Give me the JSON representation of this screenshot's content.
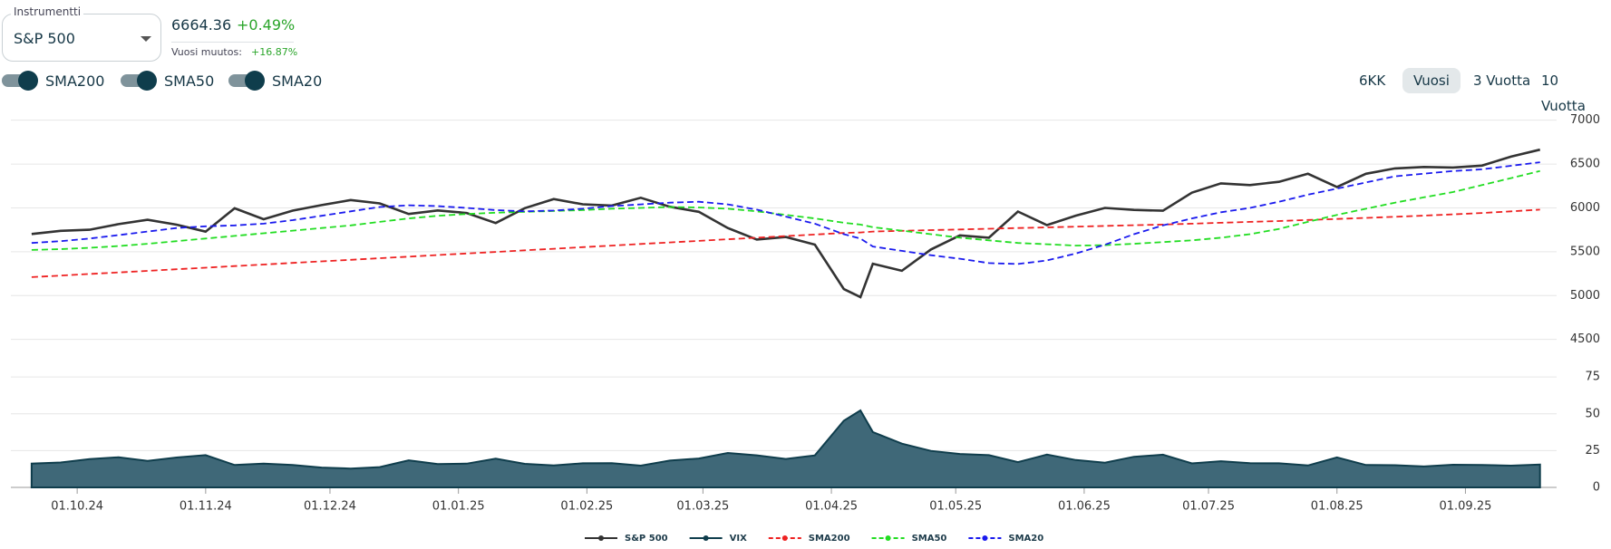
{
  "instrument": {
    "label": "Instrumentti",
    "value": "S&P 500"
  },
  "quote": {
    "price": "6664.36",
    "change": "+0.49%",
    "year_change_label": "Vuosi muutos:",
    "year_change": "+16.87%"
  },
  "toggles": [
    {
      "label": "SMA200",
      "on": true
    },
    {
      "label": "SMA50",
      "on": true
    },
    {
      "label": "SMA20",
      "on": true
    }
  ],
  "ranges": {
    "options": [
      "6KK",
      "Vuosi",
      "3 Vuotta",
      "10 Vuotta"
    ],
    "selected": 1
  },
  "chart_data": [
    {
      "type": "line",
      "x": [
        "2024-09-20",
        "2024-09-27",
        "2024-10-04",
        "2024-10-11",
        "2024-10-18",
        "2024-10-25",
        "2024-11-01",
        "2024-11-08",
        "2024-11-15",
        "2024-11-22",
        "2024-11-29",
        "2024-12-06",
        "2024-12-13",
        "2024-12-20",
        "2024-12-27",
        "2025-01-03",
        "2025-01-10",
        "2025-01-17",
        "2025-01-24",
        "2025-01-31",
        "2025-02-07",
        "2025-02-14",
        "2025-02-21",
        "2025-02-28",
        "2025-03-07",
        "2025-03-14",
        "2025-03-21",
        "2025-03-28",
        "2025-04-04",
        "2025-04-08",
        "2025-04-11",
        "2025-04-18",
        "2025-04-25",
        "2025-05-02",
        "2025-05-09",
        "2025-05-16",
        "2025-05-23",
        "2025-05-30",
        "2025-06-06",
        "2025-06-13",
        "2025-06-20",
        "2025-06-27",
        "2025-07-04",
        "2025-07-11",
        "2025-07-18",
        "2025-07-25",
        "2025-08-01",
        "2025-08-08",
        "2025-08-15",
        "2025-08-22",
        "2025-08-29",
        "2025-09-05",
        "2025-09-12",
        "2025-09-19"
      ],
      "xlim": [
        "2024-09-15",
        "2025-09-23"
      ],
      "ylim": [
        4300,
        7100
      ],
      "yticks": [
        4500,
        5000,
        5500,
        6000,
        6500,
        7000
      ],
      "grid": true,
      "series": [
        {
          "name": "S&P 500",
          "color": "#333333",
          "style": "solid",
          "values": [
            5702,
            5738,
            5751,
            5815,
            5864,
            5808,
            5729,
            5995,
            5870,
            5969,
            6032,
            6090,
            6051,
            5930,
            5971,
            5942,
            5827,
            5997,
            6101,
            6041,
            6026,
            6115,
            6013,
            5955,
            5770,
            5639,
            5668,
            5581,
            5074,
            4983,
            5363,
            5283,
            5525,
            5687,
            5660,
            5958,
            5803,
            5912,
            6000,
            5977,
            5968,
            6173,
            6280,
            6260,
            6297,
            6389,
            6238,
            6389,
            6450,
            6467,
            6460,
            6482,
            6584,
            6664
          ]
        },
        {
          "name": "SMA200",
          "color": "#ee2222",
          "style": "dashed",
          "values": [
            5210,
            5228,
            5246,
            5264,
            5282,
            5300,
            5318,
            5336,
            5354,
            5372,
            5390,
            5408,
            5426,
            5444,
            5462,
            5480,
            5498,
            5516,
            5534,
            5552,
            5570,
            5588,
            5606,
            5624,
            5642,
            5660,
            5678,
            5696,
            5714,
            5720,
            5730,
            5738,
            5746,
            5754,
            5762,
            5770,
            5778,
            5786,
            5794,
            5802,
            5810,
            5820,
            5830,
            5840,
            5850,
            5862,
            5874,
            5886,
            5898,
            5912,
            5926,
            5942,
            5960,
            5980
          ]
        },
        {
          "name": "SMA50",
          "color": "#22dd22",
          "style": "dashed",
          "values": [
            5520,
            5530,
            5545,
            5565,
            5590,
            5620,
            5650,
            5680,
            5710,
            5740,
            5770,
            5800,
            5840,
            5880,
            5910,
            5930,
            5945,
            5955,
            5965,
            5975,
            5990,
            6000,
            6010,
            6005,
            5990,
            5960,
            5920,
            5880,
            5830,
            5810,
            5780,
            5740,
            5700,
            5660,
            5630,
            5600,
            5585,
            5570,
            5575,
            5590,
            5610,
            5630,
            5660,
            5700,
            5760,
            5840,
            5920,
            5990,
            6060,
            6120,
            6180,
            6260,
            6340,
            6420
          ]
        },
        {
          "name": "SMA20",
          "color": "#1a1aee",
          "style": "dashed",
          "values": [
            5600,
            5620,
            5650,
            5690,
            5730,
            5770,
            5790,
            5800,
            5820,
            5860,
            5910,
            5960,
            6010,
            6030,
            6020,
            6000,
            5975,
            5960,
            5970,
            5990,
            6020,
            6040,
            6060,
            6070,
            6040,
            5980,
            5900,
            5820,
            5700,
            5650,
            5560,
            5510,
            5460,
            5420,
            5370,
            5360,
            5400,
            5480,
            5580,
            5700,
            5800,
            5880,
            5950,
            6000,
            6070,
            6150,
            6220,
            6290,
            6360,
            6390,
            6420,
            6440,
            6480,
            6520
          ]
        }
      ]
    },
    {
      "type": "area",
      "x": [
        "2024-09-20",
        "2024-09-27",
        "2024-10-04",
        "2024-10-11",
        "2024-10-18",
        "2024-10-25",
        "2024-11-01",
        "2024-11-08",
        "2024-11-15",
        "2024-11-22",
        "2024-11-29",
        "2024-12-06",
        "2024-12-13",
        "2024-12-20",
        "2024-12-27",
        "2025-01-03",
        "2025-01-10",
        "2025-01-17",
        "2025-01-24",
        "2025-01-31",
        "2025-02-07",
        "2025-02-14",
        "2025-02-21",
        "2025-02-28",
        "2025-03-07",
        "2025-03-14",
        "2025-03-21",
        "2025-03-28",
        "2025-04-04",
        "2025-04-08",
        "2025-04-11",
        "2025-04-18",
        "2025-04-25",
        "2025-05-02",
        "2025-05-09",
        "2025-05-16",
        "2025-05-23",
        "2025-05-30",
        "2025-06-06",
        "2025-06-13",
        "2025-06-20",
        "2025-06-27",
        "2025-07-04",
        "2025-07-11",
        "2025-07-18",
        "2025-07-25",
        "2025-08-01",
        "2025-08-08",
        "2025-08-15",
        "2025-08-22",
        "2025-08-29",
        "2025-09-05",
        "2025-09-12",
        "2025-09-19"
      ],
      "xlim": [
        "2024-09-15",
        "2025-09-23"
      ],
      "xticks": [
        {
          "value": "2024-10-01",
          "label": "01.10.24"
        },
        {
          "value": "2024-11-01",
          "label": "01.11.24"
        },
        {
          "value": "2024-12-01",
          "label": "01.12.24"
        },
        {
          "value": "2025-01-01",
          "label": "01.01.25"
        },
        {
          "value": "2025-02-01",
          "label": "01.02.25"
        },
        {
          "value": "2025-03-01",
          "label": "01.03.25"
        },
        {
          "value": "2025-04-01",
          "label": "01.04.25"
        },
        {
          "value": "2025-05-01",
          "label": "01.05.25"
        },
        {
          "value": "2025-06-01",
          "label": "01.06.25"
        },
        {
          "value": "2025-07-01",
          "label": "01.07.25"
        },
        {
          "value": "2025-08-01",
          "label": "01.08.25"
        },
        {
          "value": "2025-09-01",
          "label": "01.09.25"
        }
      ],
      "ylim": [
        0,
        80
      ],
      "yticks": [
        0,
        25,
        50,
        75
      ],
      "grid": true,
      "series": [
        {
          "name": "VIX",
          "color": "#0f3d4c",
          "fill": "#3f6878",
          "values": [
            16.2,
            16.9,
            19.2,
            20.5,
            18.0,
            20.3,
            21.9,
            15.2,
            16.1,
            15.2,
            13.5,
            12.8,
            13.8,
            18.4,
            15.9,
            16.1,
            19.5,
            16.0,
            14.9,
            16.4,
            16.5,
            14.8,
            18.2,
            19.6,
            23.4,
            21.8,
            19.3,
            21.7,
            45.3,
            52.3,
            37.6,
            29.7,
            24.8,
            22.7,
            21.9,
            17.2,
            22.3,
            18.6,
            16.8,
            20.8,
            22.2,
            16.3,
            17.8,
            16.5,
            16.4,
            14.9,
            20.4,
            15.2,
            15.1,
            14.2,
            15.4,
            15.2,
            14.8,
            15.5
          ]
        }
      ]
    }
  ]
}
